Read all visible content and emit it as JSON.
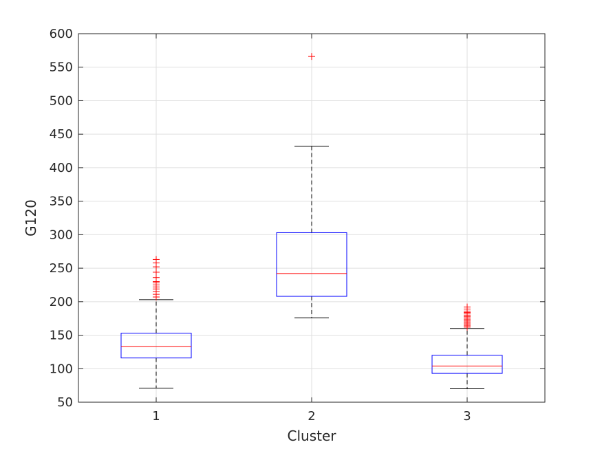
{
  "chart_data": {
    "type": "boxplot",
    "xlabel": "Cluster",
    "ylabel": "G120",
    "ylim": [
      50,
      600
    ],
    "yticks": [
      50,
      100,
      150,
      200,
      250,
      300,
      350,
      400,
      450,
      500,
      550,
      600
    ],
    "categories": [
      "1",
      "2",
      "3"
    ],
    "grid": true,
    "boxes": [
      {
        "category": "1",
        "whisker_low": 71,
        "q1": 116,
        "median": 133,
        "q3": 153,
        "whisker_high": 203,
        "outliers": [
          207,
          211,
          215,
          219,
          222,
          225,
          228,
          230,
          236,
          244,
          252,
          258,
          263
        ]
      },
      {
        "category": "2",
        "whisker_low": 176,
        "q1": 208,
        "median": 242,
        "q3": 303,
        "whisker_high": 432,
        "outliers": [
          566
        ]
      },
      {
        "category": "3",
        "whisker_low": 70,
        "q1": 93,
        "median": 104,
        "q3": 120,
        "whisker_high": 160,
        "outliers": [
          162,
          164,
          166,
          168,
          170,
          172,
          174,
          176,
          178,
          180,
          182,
          184,
          186,
          189,
          192
        ]
      }
    ],
    "colors": {
      "box": "#0000ff",
      "median": "#ff0000",
      "whisker": "#000000",
      "outlier": "#ff0000",
      "grid": "#dfdfdf",
      "axis": "#262626"
    }
  }
}
